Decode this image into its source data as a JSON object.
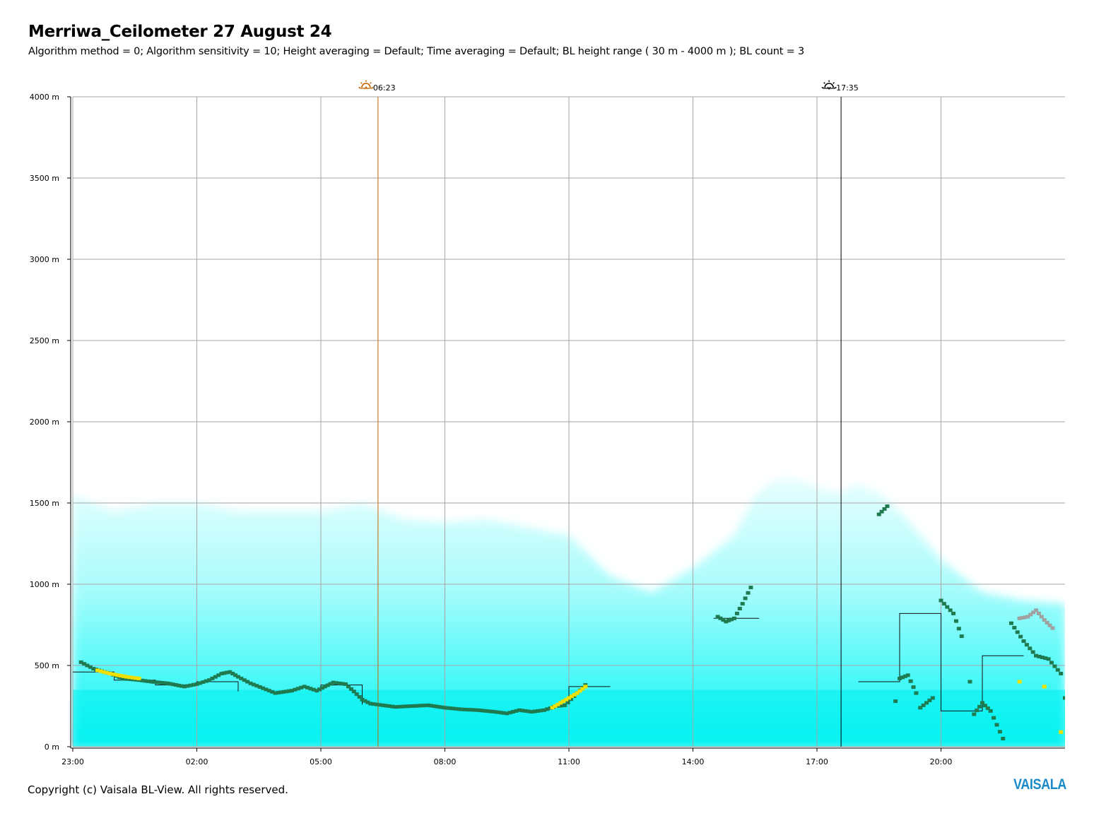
{
  "header": {
    "title": "Merriwa_Ceilometer 27 August 24",
    "subtitle": "Algorithm method = 0; Algorithm sensitivity = 10; Height averaging = Default; Time averaging = Default; BL height range ( 30 m - 4000 m ); BL count = 3"
  },
  "footer": {
    "copyright": "Copyright (c) Vaisala BL-View. All rights reserved.",
    "logo_text": "VAISALA"
  },
  "colors": {
    "grid": "#a6a6a6",
    "sunrise_line": "#c86400",
    "sunset_line": "#000000",
    "backscatter_base": "#00f0f0",
    "layer_dark_green": "#1f7a4f",
    "layer_yellow": "#f0e000",
    "layer_grey": "#a0a0a0",
    "logo": "#1a8bc8"
  },
  "chart_data": {
    "type": "scatter",
    "x_start_hour": 23,
    "x_range_hours": [
      0,
      24
    ],
    "ylim": [
      0,
      4000
    ],
    "y_unit": "m",
    "yticks": [
      {
        "value": 0,
        "label": "0 m"
      },
      {
        "value": 500,
        "label": "500 m"
      },
      {
        "value": 1000,
        "label": "1000 m"
      },
      {
        "value": 1500,
        "label": "1500 m"
      },
      {
        "value": 2000,
        "label": "2000 m"
      },
      {
        "value": 2500,
        "label": "2500 m"
      },
      {
        "value": 3000,
        "label": "3000 m"
      },
      {
        "value": 3500,
        "label": "3500 m"
      },
      {
        "value": 4000,
        "label": "4000 m"
      }
    ],
    "xticks": [
      {
        "value": 0,
        "label": "23:00"
      },
      {
        "value": 3,
        "label": "02:00"
      },
      {
        "value": 6,
        "label": "05:00"
      },
      {
        "value": 9,
        "label": "08:00"
      },
      {
        "value": 12,
        "label": "11:00"
      },
      {
        "value": 15,
        "label": "14:00"
      },
      {
        "value": 18,
        "label": "17:00"
      },
      {
        "value": 21,
        "label": "20:00"
      }
    ],
    "grid": true,
    "markers": [
      {
        "kind": "sunrise",
        "x": 7.383,
        "label": "06:23"
      },
      {
        "kind": "sunset",
        "x": 18.583,
        "label": "17:35"
      }
    ],
    "backscatter_top_profile": [
      [
        0,
        1550
      ],
      [
        1,
        1450
      ],
      [
        2,
        1500
      ],
      [
        3,
        1500
      ],
      [
        4,
        1450
      ],
      [
        5,
        1450
      ],
      [
        6,
        1450
      ],
      [
        7,
        1500
      ],
      [
        8,
        1400
      ],
      [
        9,
        1380
      ],
      [
        10,
        1400
      ],
      [
        11,
        1350
      ],
      [
        12,
        1300
      ],
      [
        13,
        1050
      ],
      [
        14,
        950
      ],
      [
        15,
        1100
      ],
      [
        16,
        1300
      ],
      [
        16.5,
        1550
      ],
      [
        17,
        1650
      ],
      [
        17.5,
        1650
      ],
      [
        18,
        1600
      ],
      [
        18.5,
        1560
      ],
      [
        19,
        1620
      ],
      [
        19.5,
        1560
      ],
      [
        20,
        1450
      ],
      [
        20.5,
        1300
      ],
      [
        21,
        1150
      ],
      [
        21.5,
        1050
      ],
      [
        22,
        950
      ],
      [
        23,
        900
      ],
      [
        24,
        880
      ]
    ],
    "series": [
      {
        "id": "layer1",
        "color_key": "layer_dark_green",
        "points": [
          [
            0.2,
            520
          ],
          [
            0.5,
            480
          ],
          [
            0.9,
            450
          ],
          [
            1.2,
            420
          ],
          [
            1.6,
            410
          ],
          [
            1.9,
            400
          ],
          [
            2.3,
            390
          ],
          [
            2.7,
            370
          ],
          [
            3.0,
            385
          ],
          [
            3.3,
            410
          ],
          [
            3.6,
            450
          ],
          [
            3.8,
            460
          ],
          [
            4.0,
            430
          ],
          [
            4.3,
            390
          ],
          [
            4.6,
            360
          ],
          [
            4.9,
            330
          ],
          [
            5.3,
            345
          ],
          [
            5.6,
            370
          ],
          [
            5.9,
            345
          ],
          [
            6.1,
            370
          ],
          [
            6.3,
            395
          ],
          [
            6.6,
            385
          ],
          [
            6.8,
            340
          ],
          [
            7.0,
            290
          ],
          [
            7.2,
            265
          ],
          [
            7.5,
            255
          ],
          [
            7.8,
            245
          ],
          [
            8.2,
            250
          ],
          [
            8.6,
            255
          ],
          [
            9.0,
            240
          ],
          [
            9.4,
            230
          ],
          [
            9.8,
            225
          ],
          [
            10.2,
            215
          ],
          [
            10.5,
            205
          ],
          [
            10.8,
            225
          ],
          [
            11.1,
            215
          ],
          [
            11.4,
            225
          ],
          [
            11.7,
            250
          ],
          [
            11.9,
            255
          ],
          [
            12.2,
            330
          ],
          [
            12.4,
            380
          ],
          [
            15.6,
            800
          ],
          [
            15.8,
            770
          ],
          [
            16.0,
            790
          ],
          [
            16.2,
            880
          ],
          [
            16.4,
            980
          ]
        ]
      },
      {
        "id": "layer1-late",
        "color_key": "layer_dark_green",
        "points": [
          [
            19.5,
            1430
          ],
          [
            19.7,
            1480
          ],
          [
            19.9,
            280
          ],
          [
            20.0,
            420
          ],
          [
            20.2,
            440
          ],
          [
            20.4,
            330
          ],
          [
            20.5,
            240
          ],
          [
            20.8,
            300
          ],
          [
            21.0,
            900
          ],
          [
            21.3,
            820
          ],
          [
            21.5,
            680
          ],
          [
            21.7,
            400
          ],
          [
            21.8,
            200
          ],
          [
            22.0,
            270
          ],
          [
            22.2,
            220
          ],
          [
            22.5,
            50
          ],
          [
            22.7,
            760
          ],
          [
            23.0,
            650
          ],
          [
            23.3,
            560
          ],
          [
            23.6,
            540
          ],
          [
            23.9,
            450
          ],
          [
            24.0,
            300
          ]
        ]
      },
      {
        "id": "layer-yellow",
        "color_key": "layer_yellow",
        "points": [
          [
            0.6,
            470
          ],
          [
            0.9,
            450
          ],
          [
            1.3,
            430
          ],
          [
            1.6,
            420
          ],
          [
            11.6,
            240
          ],
          [
            11.8,
            270
          ],
          [
            12.0,
            300
          ],
          [
            12.2,
            330
          ],
          [
            12.4,
            370
          ],
          [
            22.9,
            400
          ],
          [
            23.5,
            370
          ],
          [
            23.9,
            90
          ]
        ]
      },
      {
        "id": "layer-grey",
        "color_key": "layer_grey",
        "points": [
          [
            22.9,
            790
          ],
          [
            23.1,
            800
          ],
          [
            23.3,
            840
          ],
          [
            23.5,
            780
          ],
          [
            23.7,
            730
          ]
        ]
      }
    ],
    "bl_step_line": [
      [
        0,
        460
      ],
      [
        1,
        460
      ],
      [
        1,
        410
      ],
      [
        2,
        410
      ],
      [
        2,
        380
      ],
      [
        3,
        380
      ],
      [
        3,
        400
      ],
      [
        4,
        400
      ],
      [
        4,
        340
      ],
      [
        6,
        340
      ],
      [
        6,
        380
      ],
      [
        7,
        380
      ],
      [
        7,
        260
      ],
      [
        12,
        260
      ],
      [
        12,
        370
      ],
      [
        13,
        370
      ],
      [
        15.5,
        790
      ],
      [
        16.6,
        790
      ],
      [
        19.0,
        400
      ],
      [
        20.0,
        400
      ],
      [
        20.0,
        820
      ],
      [
        21.0,
        820
      ],
      [
        21.0,
        220
      ],
      [
        22.0,
        220
      ],
      [
        22.0,
        560
      ],
      [
        23.0,
        560
      ]
    ]
  }
}
